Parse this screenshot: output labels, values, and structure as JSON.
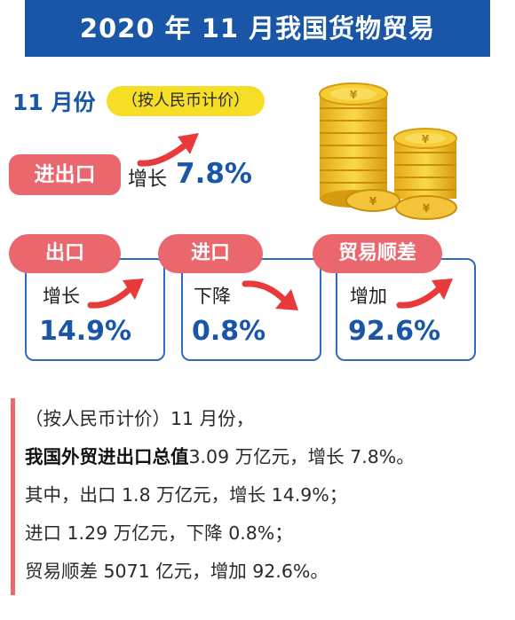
{
  "header": {
    "title": "2020 年 11 月我国货物贸易"
  },
  "summary": {
    "month": "11 月份",
    "currency_note": "（按人民币计价）",
    "trade_label": "进出口",
    "trade_change_word": "增长",
    "trade_change_value": "7.8%"
  },
  "cards": [
    {
      "title": "出口",
      "change_word": "增长",
      "value": "14.9%",
      "direction": "up"
    },
    {
      "title": "进口",
      "change_word": "下降",
      "value": "0.8%",
      "direction": "down"
    },
    {
      "title": "贸易顺差",
      "change_word": "增加",
      "value": "92.6%",
      "direction": "up"
    }
  ],
  "text_lines": {
    "line1": "（按人民币计价）11 月份，",
    "line2_bold": "我国外贸进出口总值",
    "line2_rest": "3.09 万亿元，增长 7.8%。",
    "line3": "其中，出口 1.8 万亿元，增长 14.9%；",
    "line4": "进口 1.29 万亿元，下降 0.8%；",
    "line5": "贸易顺差 5071 亿元，增加 92.6%。"
  },
  "colors": {
    "header": "#1a56a8",
    "pill": "#e9676d",
    "badge": "#f7de26",
    "value": "#1a56a8",
    "coin": "#f2c335"
  },
  "icons": {
    "up": "red-arrow-up-icon",
    "down": "red-arrow-down-icon",
    "coins": "yuan-coin-stack-icon"
  }
}
